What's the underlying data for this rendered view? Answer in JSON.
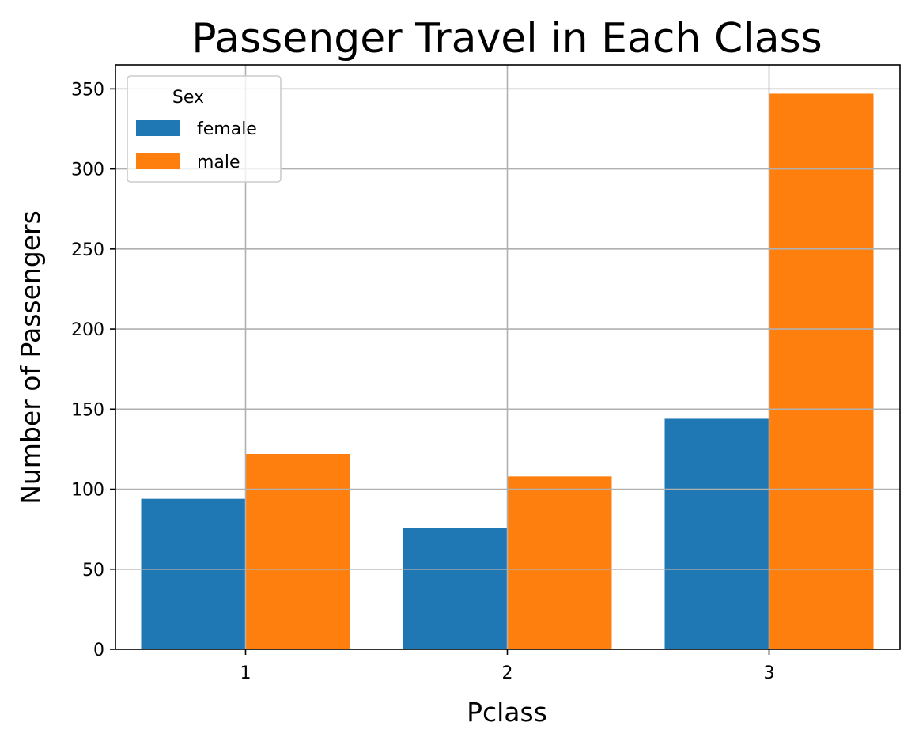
{
  "chart_data": {
    "type": "bar",
    "title": "Passenger Travel in Each Class",
    "xlabel": "Pclass",
    "ylabel": "Number of Passengers",
    "categories": [
      "1",
      "2",
      "3"
    ],
    "series": [
      {
        "name": "female",
        "values": [
          94,
          76,
          144
        ],
        "color": "#1f77b4"
      },
      {
        "name": "male",
        "values": [
          122,
          108,
          347
        ],
        "color": "#ff7f0e"
      }
    ],
    "ylim": [
      0,
      365
    ],
    "yticks": [
      0,
      50,
      100,
      150,
      200,
      250,
      300,
      350
    ],
    "grid": true,
    "legend": {
      "title": "Sex",
      "placement": "top-left"
    }
  }
}
